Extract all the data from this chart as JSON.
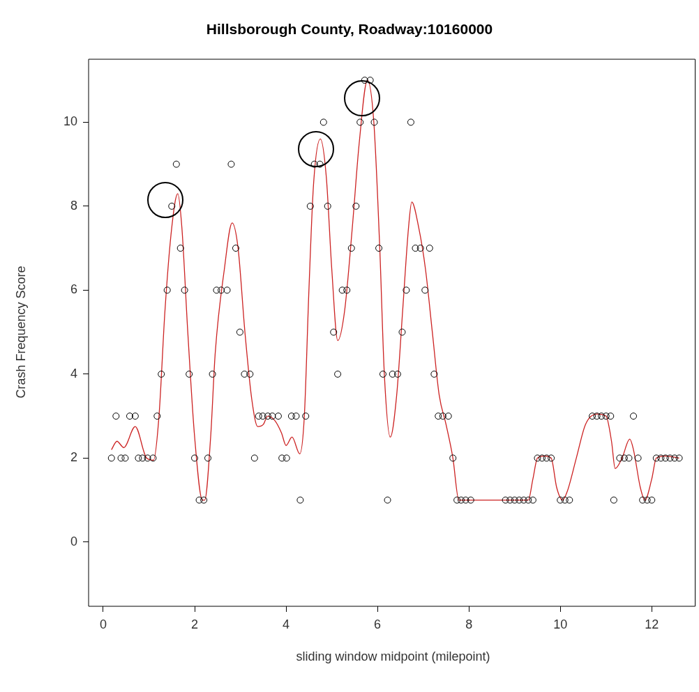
{
  "chart_data": {
    "type": "scatter",
    "title": "Hillsborough County, Roadway:10160000",
    "xlabel": "sliding window midpoint (milepoint)",
    "ylabel": "Crash Frequency Score",
    "xlim": [
      -0.32,
      12.95
    ],
    "ylim": [
      -1.53,
      11.5
    ],
    "xticks": [
      0,
      2,
      4,
      6,
      8,
      10,
      12
    ],
    "yticks": [
      0,
      2,
      4,
      6,
      8,
      10
    ],
    "grid": false,
    "legend": false,
    "marker": "circle",
    "series": [
      {
        "color": "#000000",
        "x": [
          0.18,
          0.28,
          0.39,
          0.48,
          0.58,
          0.7,
          0.77,
          0.86,
          0.97,
          1.09,
          1.18,
          1.27,
          1.4,
          1.5,
          1.6,
          1.69,
          1.78,
          1.88,
          2.0,
          2.1,
          2.2,
          2.29,
          2.39,
          2.48,
          2.58,
          2.71,
          2.8,
          2.9,
          2.99,
          3.09,
          3.21,
          3.31,
          3.4,
          3.49,
          3.6,
          3.7,
          3.83,
          3.91,
          4.01,
          4.12,
          4.22,
          4.31,
          4.43,
          4.53,
          4.62,
          4.74,
          4.82,
          4.91,
          5.04,
          5.13,
          5.23,
          5.33,
          5.43,
          5.53,
          5.62,
          5.72,
          5.84,
          5.93,
          6.03,
          6.12,
          6.22,
          6.33,
          6.44,
          6.54,
          6.63,
          6.73,
          6.83,
          6.94,
          7.04,
          7.14,
          7.24,
          7.33,
          7.43,
          7.55,
          7.65,
          7.74,
          7.83,
          7.93,
          8.04,
          8.8,
          8.9,
          9.0,
          9.1,
          9.2,
          9.3,
          9.4,
          9.5,
          9.6,
          9.7,
          9.8,
          10.0,
          10.1,
          10.2,
          10.7,
          10.8,
          10.9,
          11.0,
          11.1,
          11.17,
          11.3,
          11.4,
          11.5,
          11.6,
          11.7,
          11.8,
          11.9,
          12.0,
          12.1,
          12.2,
          12.3,
          12.4,
          12.5,
          12.6
        ],
        "values": [
          2,
          3,
          2,
          2,
          3,
          3,
          2,
          2,
          2,
          2,
          3,
          4,
          6,
          8,
          9,
          7,
          6,
          4,
          2,
          1,
          1,
          2,
          4,
          6,
          6,
          6,
          9,
          7,
          5,
          4,
          4,
          2,
          3,
          3,
          3,
          3,
          3,
          2,
          2,
          3,
          3,
          1,
          3,
          8,
          9,
          9,
          10,
          8,
          5,
          4,
          6,
          6,
          7,
          8,
          10,
          11,
          11,
          10,
          7,
          4,
          1,
          4,
          4,
          5,
          6,
          10,
          7,
          7,
          6,
          7,
          4,
          3,
          3,
          3,
          2,
          1,
          1,
          1,
          1,
          1,
          1,
          1,
          1,
          1,
          1,
          1,
          2,
          2,
          2,
          2,
          1,
          1,
          1,
          3,
          3,
          3,
          3,
          3,
          1,
          2,
          2,
          2,
          3,
          2,
          1,
          1,
          1,
          2,
          2,
          2,
          2,
          2,
          2
        ]
      },
      {
        "type": "line",
        "color": "#cc2222",
        "marker": "none",
        "line_style": "solid",
        "x": [
          0.18,
          0.3,
          0.45,
          0.7,
          0.95,
          1.1,
          1.22,
          1.35,
          1.5,
          1.63,
          1.72,
          1.85,
          2.0,
          2.17,
          2.22,
          2.35,
          2.45,
          2.65,
          2.82,
          2.95,
          3.1,
          3.25,
          3.38,
          3.5,
          3.6,
          3.75,
          3.9,
          4.0,
          4.13,
          4.3,
          4.4,
          4.5,
          4.6,
          4.75,
          4.88,
          5.0,
          5.13,
          5.28,
          5.45,
          5.6,
          5.78,
          5.92,
          6.05,
          6.15,
          6.28,
          6.42,
          6.55,
          6.68,
          6.75,
          6.9,
          7.05,
          7.2,
          7.35,
          7.5,
          7.65,
          7.78,
          8.5,
          9.3,
          9.4,
          9.5,
          9.65,
          9.8,
          9.92,
          10.05,
          10.15,
          10.35,
          10.55,
          10.8,
          11.0,
          11.12,
          11.2,
          11.35,
          11.52,
          11.6,
          11.75,
          11.85,
          12.0,
          12.1,
          12.3,
          12.6
        ],
        "values": [
          2.2,
          2.4,
          2.25,
          2.75,
          2.0,
          1.95,
          3.0,
          5.5,
          7.5,
          8.3,
          7.5,
          5.0,
          2.5,
          1.0,
          1.0,
          2.5,
          4.5,
          6.5,
          7.6,
          7.0,
          5.0,
          3.4,
          2.75,
          2.8,
          3.0,
          2.9,
          2.6,
          2.3,
          2.5,
          2.1,
          3.0,
          6.0,
          8.5,
          9.6,
          8.7,
          6.5,
          4.8,
          5.5,
          7.5,
          9.5,
          11.0,
          10.0,
          7.0,
          4.0,
          2.5,
          3.5,
          5.5,
          7.5,
          8.1,
          7.5,
          6.5,
          5.0,
          3.5,
          2.8,
          2.0,
          1.0,
          1.0,
          1.0,
          1.5,
          2.0,
          2.05,
          2.0,
          1.3,
          1.0,
          1.2,
          2.0,
          2.8,
          3.05,
          3.0,
          2.4,
          1.75,
          2.0,
          2.45,
          2.2,
          1.3,
          1.0,
          1.5,
          2.0,
          2.05,
          2.0
        ]
      }
    ]
  }
}
